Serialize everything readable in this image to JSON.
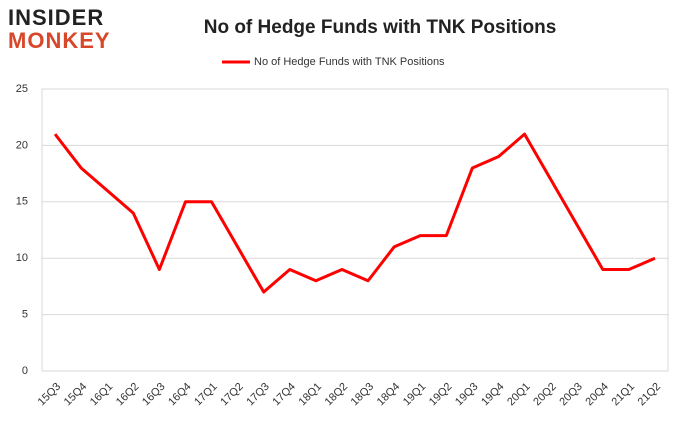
{
  "logo": {
    "line1": "INSIDER",
    "line2": "MONKEY"
  },
  "chart_data": {
    "type": "line",
    "title": "No of Hedge Funds with TNK Positions",
    "categories": [
      "15Q3",
      "15Q4",
      "16Q1",
      "16Q2",
      "16Q3",
      "16Q4",
      "17Q1",
      "17Q2",
      "17Q3",
      "17Q4",
      "18Q1",
      "18Q2",
      "18Q3",
      "18Q4",
      "19Q1",
      "19Q2",
      "19Q3",
      "19Q4",
      "20Q1",
      "20Q2",
      "20Q3",
      "20Q4",
      "21Q1",
      "21Q2"
    ],
    "series": [
      {
        "name": "No of Hedge Funds with TNK Positions",
        "color": "#ff0000",
        "values": [
          21,
          18,
          16,
          14,
          9,
          15,
          15,
          11,
          7,
          9,
          8,
          9,
          8,
          11,
          12,
          12,
          18,
          19,
          21,
          17,
          13,
          9,
          9,
          10
        ]
      }
    ],
    "ylim": [
      0,
      25
    ],
    "yticks": [
      0,
      5,
      10,
      15,
      20,
      25
    ],
    "grid": true,
    "legend": "top"
  }
}
